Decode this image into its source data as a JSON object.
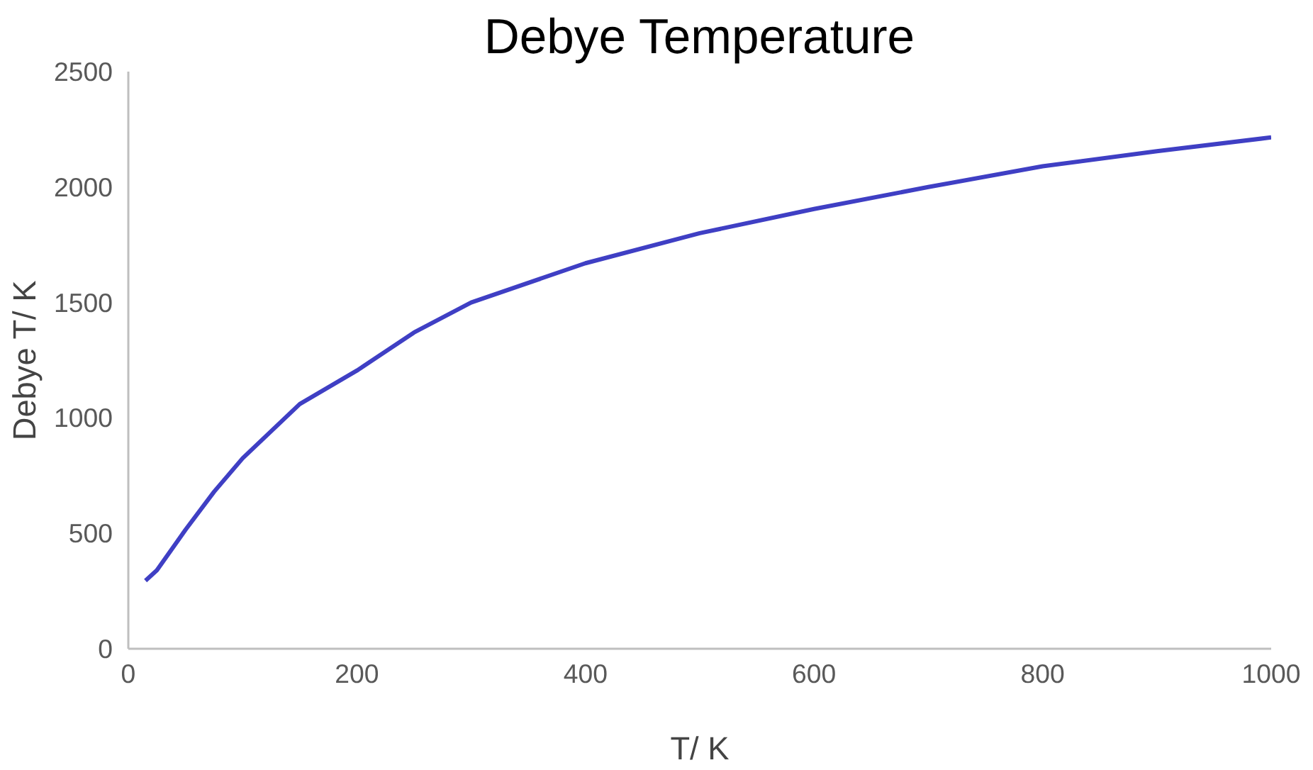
{
  "chart_data": {
    "type": "line",
    "title": "Debye Temperature",
    "xlabel": "T/ K",
    "ylabel": "Debye T/ K",
    "x": [
      15,
      25,
      50,
      75,
      100,
      150,
      200,
      250,
      300,
      400,
      500,
      600,
      700,
      800,
      900,
      1000
    ],
    "series": [
      {
        "color": "#3f3fc4",
        "values": [
          295,
          340,
          515,
          680,
          825,
          1060,
          1205,
          1370,
          1500,
          1670,
          1800,
          1905,
          2000,
          2090,
          2155,
          2215
        ]
      }
    ],
    "xlim": [
      0,
      1000
    ],
    "xticks": [
      0,
      200,
      400,
      600,
      800,
      1000
    ],
    "ylim": [
      0,
      2500
    ],
    "yticks": [
      0,
      500,
      1000,
      1500,
      2000,
      2500
    ],
    "grid": false,
    "marker": "none",
    "line_style": "solid"
  }
}
